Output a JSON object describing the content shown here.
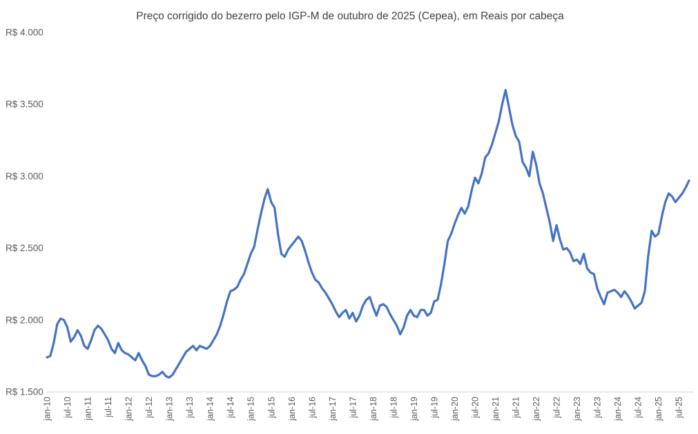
{
  "chart_data": {
    "type": "line",
    "title": "Preço corrigido do bezerro pelo IGP-M de outubro de 2025 (Cepea), em Reais por cabeça",
    "series_name": "Preço corrigido do bezerro, em Reais por cabeça",
    "frequency": "monthly",
    "first_month": "jan-10",
    "last_month": "out-25",
    "x_tick_labels": [
      "jan-10",
      "jul-10",
      "jan-11",
      "jul-11",
      "jan-12",
      "jul-12",
      "jan-13",
      "jul-13",
      "jan-14",
      "jul-14",
      "jan-15",
      "jul-15",
      "jan-16",
      "jul-16",
      "jan-17",
      "jul-17",
      "jan-18",
      "jul-18",
      "jan-19",
      "jul-19",
      "jan-20",
      "jul-20",
      "jan-21",
      "jul-21",
      "jan-22",
      "jul-22",
      "jan-23",
      "jul-23",
      "jan-24",
      "jul-24",
      "jan-25",
      "jul-25"
    ],
    "y_tick_labels": [
      "R$ 4.000",
      "R$ 3.500",
      "R$ 3.000",
      "R$ 2.500",
      "R$ 2.000",
      "R$ 1.500"
    ],
    "y_ticks": [
      4000,
      3500,
      3000,
      2500,
      2000,
      1500
    ],
    "ylim": [
      1500,
      4000
    ],
    "grid": false,
    "legend": "none",
    "line_color": "#4472C4",
    "axis_line_color": "#D9D9D9",
    "tick_label_color": "#595959",
    "title_color": "#404040",
    "values": [
      1740,
      1750,
      1840,
      1970,
      2010,
      2000,
      1950,
      1850,
      1880,
      1930,
      1890,
      1820,
      1800,
      1860,
      1930,
      1960,
      1940,
      1900,
      1860,
      1800,
      1770,
      1840,
      1790,
      1770,
      1760,
      1740,
      1720,
      1770,
      1720,
      1680,
      1620,
      1610,
      1610,
      1620,
      1640,
      1610,
      1600,
      1620,
      1660,
      1700,
      1740,
      1780,
      1800,
      1820,
      1790,
      1820,
      1810,
      1800,
      1820,
      1860,
      1900,
      1960,
      2040,
      2130,
      2200,
      2210,
      2230,
      2280,
      2320,
      2390,
      2460,
      2510,
      2630,
      2740,
      2840,
      2910,
      2820,
      2780,
      2600,
      2460,
      2440,
      2490,
      2520,
      2550,
      2580,
      2550,
      2480,
      2400,
      2330,
      2280,
      2260,
      2220,
      2190,
      2150,
      2110,
      2060,
      2020,
      2050,
      2070,
      2010,
      2050,
      1990,
      2030,
      2100,
      2140,
      2160,
      2090,
      2030,
      2100,
      2110,
      2090,
      2040,
      2000,
      1960,
      1900,
      1950,
      2030,
      2070,
      2030,
      2020,
      2070,
      2070,
      2030,
      2050,
      2130,
      2140,
      2250,
      2390,
      2550,
      2600,
      2670,
      2730,
      2780,
      2740,
      2790,
      2900,
      2990,
      2950,
      3020,
      3130,
      3160,
      3220,
      3300,
      3380,
      3500,
      3600,
      3480,
      3360,
      3280,
      3240,
      3100,
      3060,
      3000,
      3170,
      3080,
      2950,
      2880,
      2780,
      2680,
      2550,
      2660,
      2560,
      2490,
      2500,
      2470,
      2410,
      2420,
      2390,
      2460,
      2360,
      2330,
      2320,
      2220,
      2160,
      2110,
      2190,
      2200,
      2210,
      2190,
      2160,
      2200,
      2170,
      2130,
      2080,
      2100,
      2120,
      2200,
      2450,
      2620,
      2580,
      2600,
      2720,
      2820,
      2880,
      2860,
      2820,
      2850,
      2880,
      2920,
      2970
    ]
  }
}
